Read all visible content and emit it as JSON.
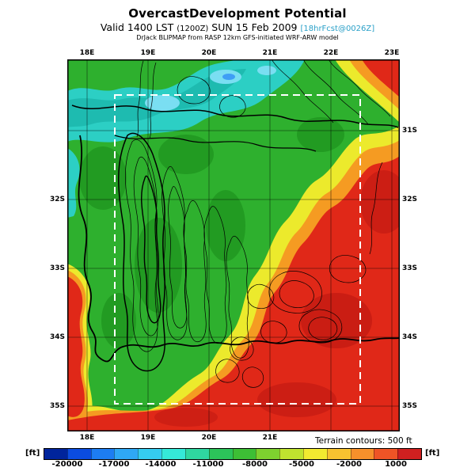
{
  "header": {
    "title": "OvercastDevelopment Potential",
    "valid_line": {
      "prefix": "Valid 1400 LST ",
      "zulu": "(1200Z)",
      "date": " SUN 15 Feb 2009 ",
      "fcst": "[18hrFcst@0026Z]"
    },
    "model_line": "DrJack BLIPMAP from RASP 12km GFS-initiated WRF-ARW model"
  },
  "map": {
    "lon_labels_top": [
      "18E",
      "19E",
      "20E",
      "21E",
      "22E",
      "23E"
    ],
    "lon_labels_bottom": [
      "18E",
      "19E",
      "20E",
      "21E"
    ],
    "lat_labels_left": [
      "32S",
      "33S",
      "34S",
      "35S"
    ],
    "lat_labels_right": [
      "31S",
      "32S",
      "33S",
      "34S",
      "35S"
    ],
    "terrain_note": "Terrain contours: 500 ft"
  },
  "colorbar": {
    "unit_left": "[ft]",
    "unit_right": "[ft]",
    "labels": [
      "-20000",
      "-17000",
      "-14000",
      "-11000",
      "-8000",
      "-5000",
      "-2000",
      "1000"
    ],
    "min": -21500,
    "max": 2500,
    "colors": [
      "#00249c",
      "#0b4ce0",
      "#1d7df2",
      "#2fa8f5",
      "#35ccf0",
      "#35e8d8",
      "#2fd6a0",
      "#2cc45a",
      "#3dbf35",
      "#7ed12f",
      "#bfe32f",
      "#f2ea30",
      "#f7c230",
      "#f7902b",
      "#ef5426",
      "#cf2020"
    ]
  }
}
